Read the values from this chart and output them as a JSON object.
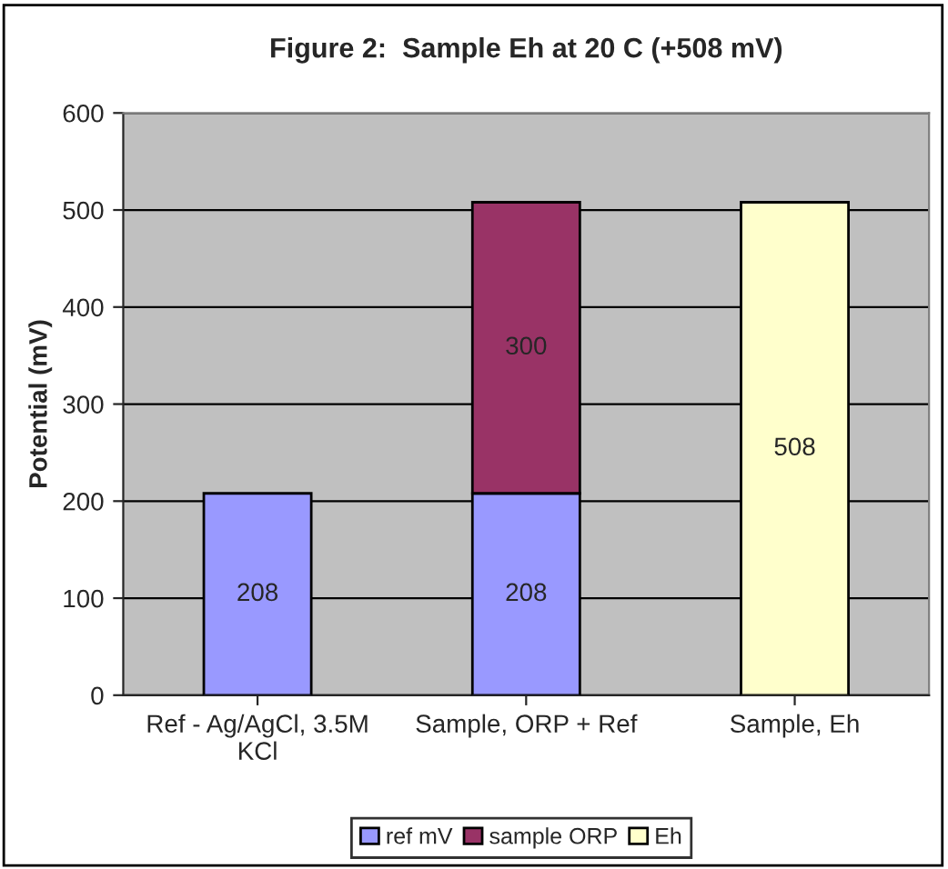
{
  "chart_data": {
    "type": "bar",
    "title": "Figure 2:  Sample Eh at 20 C (+508 mV)",
    "ylabel": "Potential (mV)",
    "categories": [
      "Ref - Ag/AgCl, 3.5M\nKCl",
      "Sample, ORP + Ref",
      "Sample, Eh"
    ],
    "series": [
      {
        "name": "ref mV",
        "color": "#9999ff",
        "values": [
          208,
          208,
          null
        ]
      },
      {
        "name": "sample ORP",
        "color": "#993366",
        "values": [
          null,
          300,
          null
        ]
      },
      {
        "name": "Eh",
        "color": "#ffffcc",
        "values": [
          null,
          null,
          508
        ]
      }
    ],
    "stacked": true,
    "data_labels": true,
    "ylim": [
      0,
      600
    ],
    "yticks": [
      0,
      100,
      200,
      300,
      400,
      500,
      600
    ],
    "grid": "y",
    "legend": "bottom"
  }
}
